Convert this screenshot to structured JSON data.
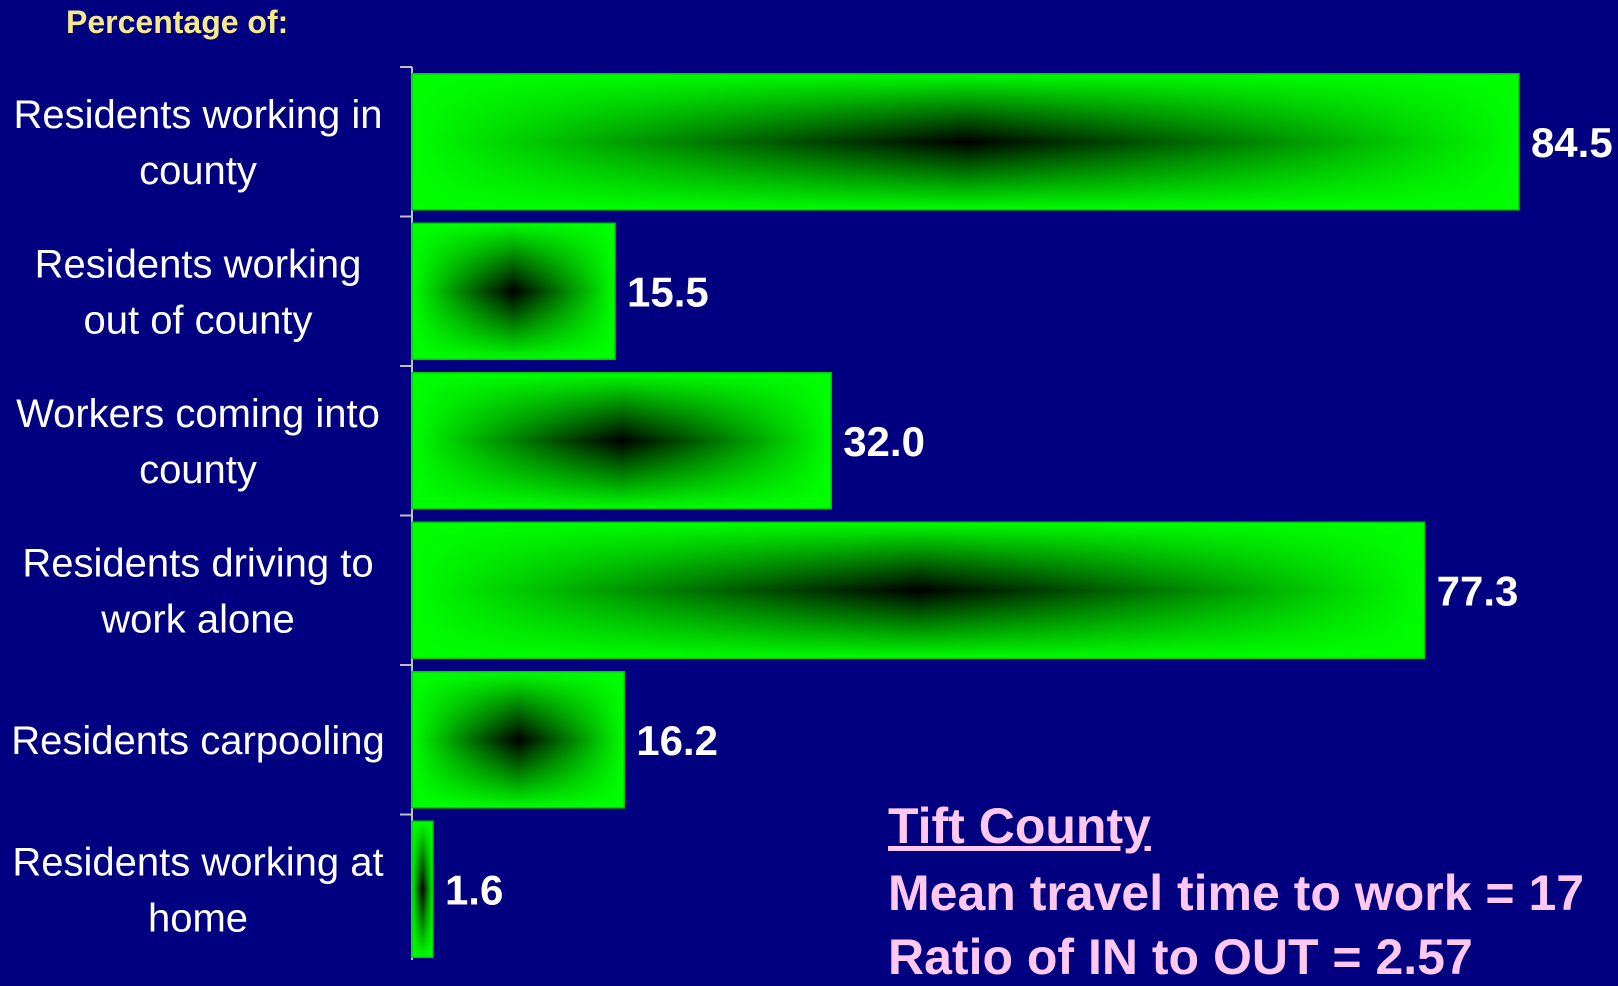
{
  "chart_data": {
    "type": "bar",
    "orientation": "horizontal",
    "title": "Percentage of:",
    "categories": [
      [
        "Residents working in",
        "county"
      ],
      [
        "Residents working",
        "out of county"
      ],
      [
        "Workers coming into",
        "county"
      ],
      [
        "Residents driving to",
        "work alone"
      ],
      [
        "Residents carpooling"
      ],
      [
        "Residents working at",
        "home"
      ]
    ],
    "values": [
      84.5,
      15.5,
      32.0,
      77.3,
      16.2,
      1.6
    ],
    "value_labels": [
      "84.5",
      "15.5",
      "32.0",
      "77.3",
      "16.2",
      "1.6"
    ],
    "xlim": [
      0,
      100
    ],
    "grid": false,
    "legend": "none"
  },
  "annotation": {
    "title": "Tift County",
    "line1": "Mean travel time to work = 17",
    "line2": "Ratio of IN to OUT = 2.57"
  },
  "colors": {
    "background": "#000080",
    "bar_edge": "#00FF00",
    "bar_center": "#000000",
    "heading": "#F5E98A",
    "labels": "#FFFFFF",
    "annotation": "#FFC8F0"
  }
}
